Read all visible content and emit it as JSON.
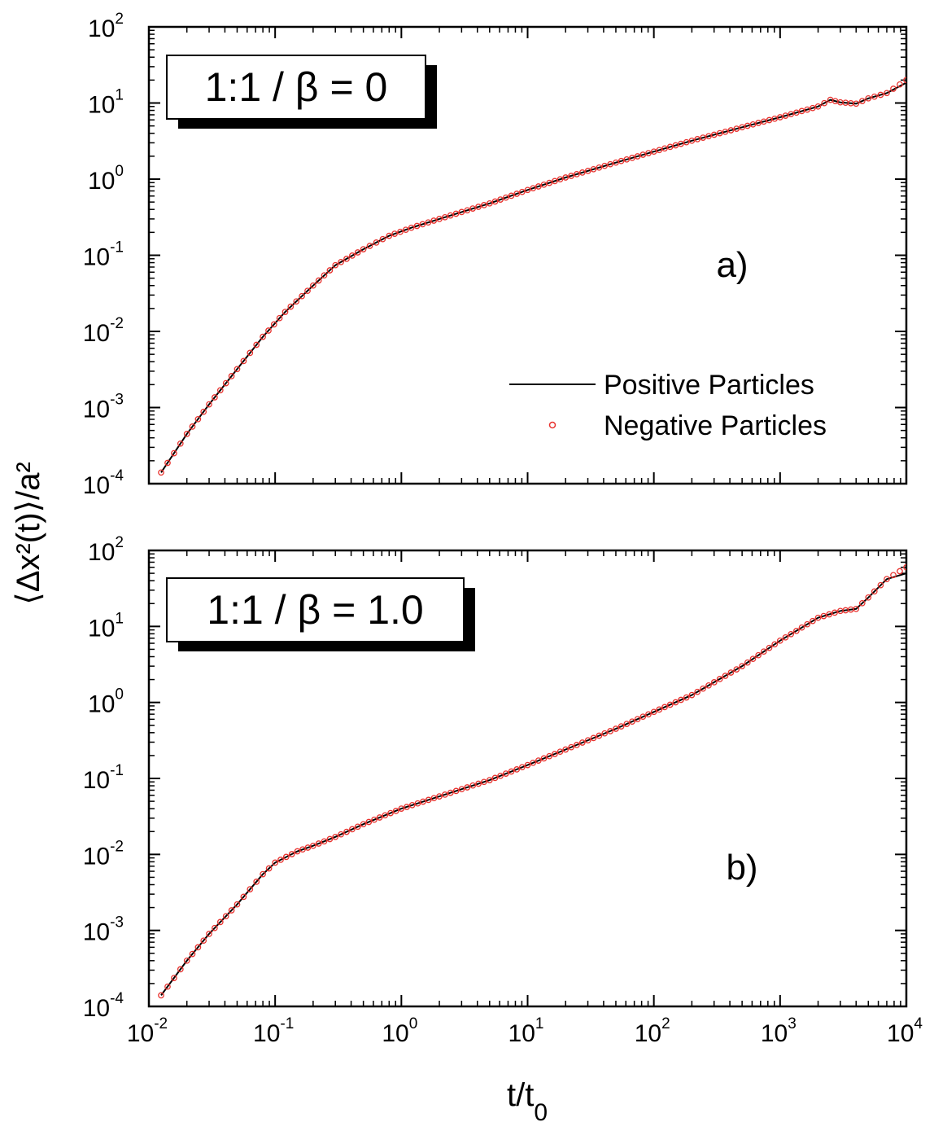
{
  "figure": {
    "ylabel": "⟨Δx²(t)⟩/a²",
    "xlabel_main": "t/t",
    "xlabel_sub": "0"
  },
  "legend": {
    "line_label": "Positive Particles",
    "marker_label": "Negative Particles",
    "line_color": "#000000",
    "marker_color": "#e8322e"
  },
  "chart_data": [
    {
      "type": "line",
      "panel_label": "a)",
      "inset_label": "1:1 / β = 0",
      "x_scale": "log",
      "y_scale": "log",
      "xlim": [
        0.01,
        10000
      ],
      "ylim": [
        0.0001,
        100
      ],
      "x_tick_labels": [
        "10",
        "10",
        "10",
        "10",
        "10",
        "10",
        "10"
      ],
      "x_tick_exponents": [
        "-2",
        "-1",
        "0",
        "1",
        "2",
        "3",
        "4"
      ],
      "y_tick_labels": [
        "10",
        "10",
        "10",
        "10",
        "10",
        "10",
        "10"
      ],
      "y_tick_exponents": [
        "-4",
        "-3",
        "-2",
        "-1",
        "0",
        "1",
        "2"
      ],
      "legend_position": "right-middle",
      "series": [
        {
          "name": "Positive Particles",
          "style": "line",
          "x": [
            0.0125,
            0.02,
            0.03,
            0.05,
            0.08,
            0.12,
            0.2,
            0.3,
            0.5,
            0.8,
            1.2,
            2,
            3,
            5,
            10,
            20,
            50,
            100,
            200,
            500,
            1000,
            2000,
            2500,
            3000,
            4000,
            5000,
            7000,
            10000
          ],
          "y": [
            0.00014,
            0.00045,
            0.0011,
            0.0032,
            0.0085,
            0.018,
            0.04,
            0.074,
            0.12,
            0.18,
            0.23,
            0.3,
            0.37,
            0.48,
            0.72,
            1.05,
            1.65,
            2.3,
            3.2,
            4.8,
            6.5,
            9.0,
            11.0,
            10.2,
            9.8,
            11.5,
            13.5,
            18.5
          ]
        },
        {
          "name": "Negative Particles",
          "style": "markers",
          "x": [
            0.0125,
            0.02,
            0.03,
            0.05,
            0.08,
            0.12,
            0.2,
            0.3,
            0.5,
            0.8,
            1.2,
            2,
            3,
            5,
            10,
            20,
            50,
            100,
            200,
            500,
            1000,
            2000,
            2500,
            3000,
            4000,
            5000,
            7000,
            10000
          ],
          "y": [
            0.00014,
            0.00045,
            0.0011,
            0.0032,
            0.0085,
            0.018,
            0.04,
            0.074,
            0.12,
            0.18,
            0.23,
            0.3,
            0.37,
            0.48,
            0.72,
            1.05,
            1.65,
            2.3,
            3.2,
            4.8,
            6.5,
            9.0,
            11.0,
            10.2,
            9.8,
            11.5,
            13.5,
            20.0
          ]
        }
      ]
    },
    {
      "type": "line",
      "panel_label": "b)",
      "inset_label": "1:1 / β = 1.0",
      "x_scale": "log",
      "y_scale": "log",
      "xlim": [
        0.01,
        10000
      ],
      "ylim": [
        0.0001,
        100
      ],
      "x_tick_labels": [
        "10",
        "10",
        "10",
        "10",
        "10",
        "10",
        "10"
      ],
      "x_tick_exponents": [
        "-2",
        "-1",
        "0",
        "1",
        "2",
        "3",
        "4"
      ],
      "y_tick_labels": [
        "10",
        "10",
        "10",
        "10",
        "10",
        "10",
        "10"
      ],
      "y_tick_exponents": [
        "-4",
        "-3",
        "-2",
        "-1",
        "0",
        "1",
        "2"
      ],
      "series": [
        {
          "name": "Positive Particles",
          "style": "line",
          "x": [
            0.0125,
            0.02,
            0.03,
            0.05,
            0.08,
            0.1,
            0.15,
            0.2,
            0.3,
            0.5,
            1,
            2,
            5,
            10,
            20,
            50,
            100,
            200,
            500,
            1000,
            2000,
            3000,
            4000,
            5000,
            7000,
            10000
          ],
          "y": [
            0.00014,
            0.0004,
            0.0009,
            0.0022,
            0.0055,
            0.0078,
            0.011,
            0.013,
            0.017,
            0.025,
            0.04,
            0.058,
            0.095,
            0.15,
            0.24,
            0.45,
            0.75,
            1.25,
            3.0,
            6.5,
            13.0,
            16.0,
            17.0,
            24.0,
            42.0,
            50.0
          ]
        },
        {
          "name": "Negative Particles",
          "style": "markers",
          "x": [
            0.0125,
            0.02,
            0.03,
            0.05,
            0.08,
            0.1,
            0.15,
            0.2,
            0.3,
            0.5,
            1,
            2,
            5,
            10,
            20,
            50,
            100,
            200,
            500,
            1000,
            2000,
            3000,
            4000,
            5000,
            7000,
            10000
          ],
          "y": [
            0.00014,
            0.0004,
            0.0009,
            0.0022,
            0.0055,
            0.0078,
            0.011,
            0.013,
            0.017,
            0.025,
            0.04,
            0.058,
            0.095,
            0.15,
            0.24,
            0.45,
            0.75,
            1.25,
            3.0,
            6.5,
            13.0,
            16.0,
            17.0,
            24.0,
            42.0,
            60.0
          ]
        }
      ]
    }
  ]
}
